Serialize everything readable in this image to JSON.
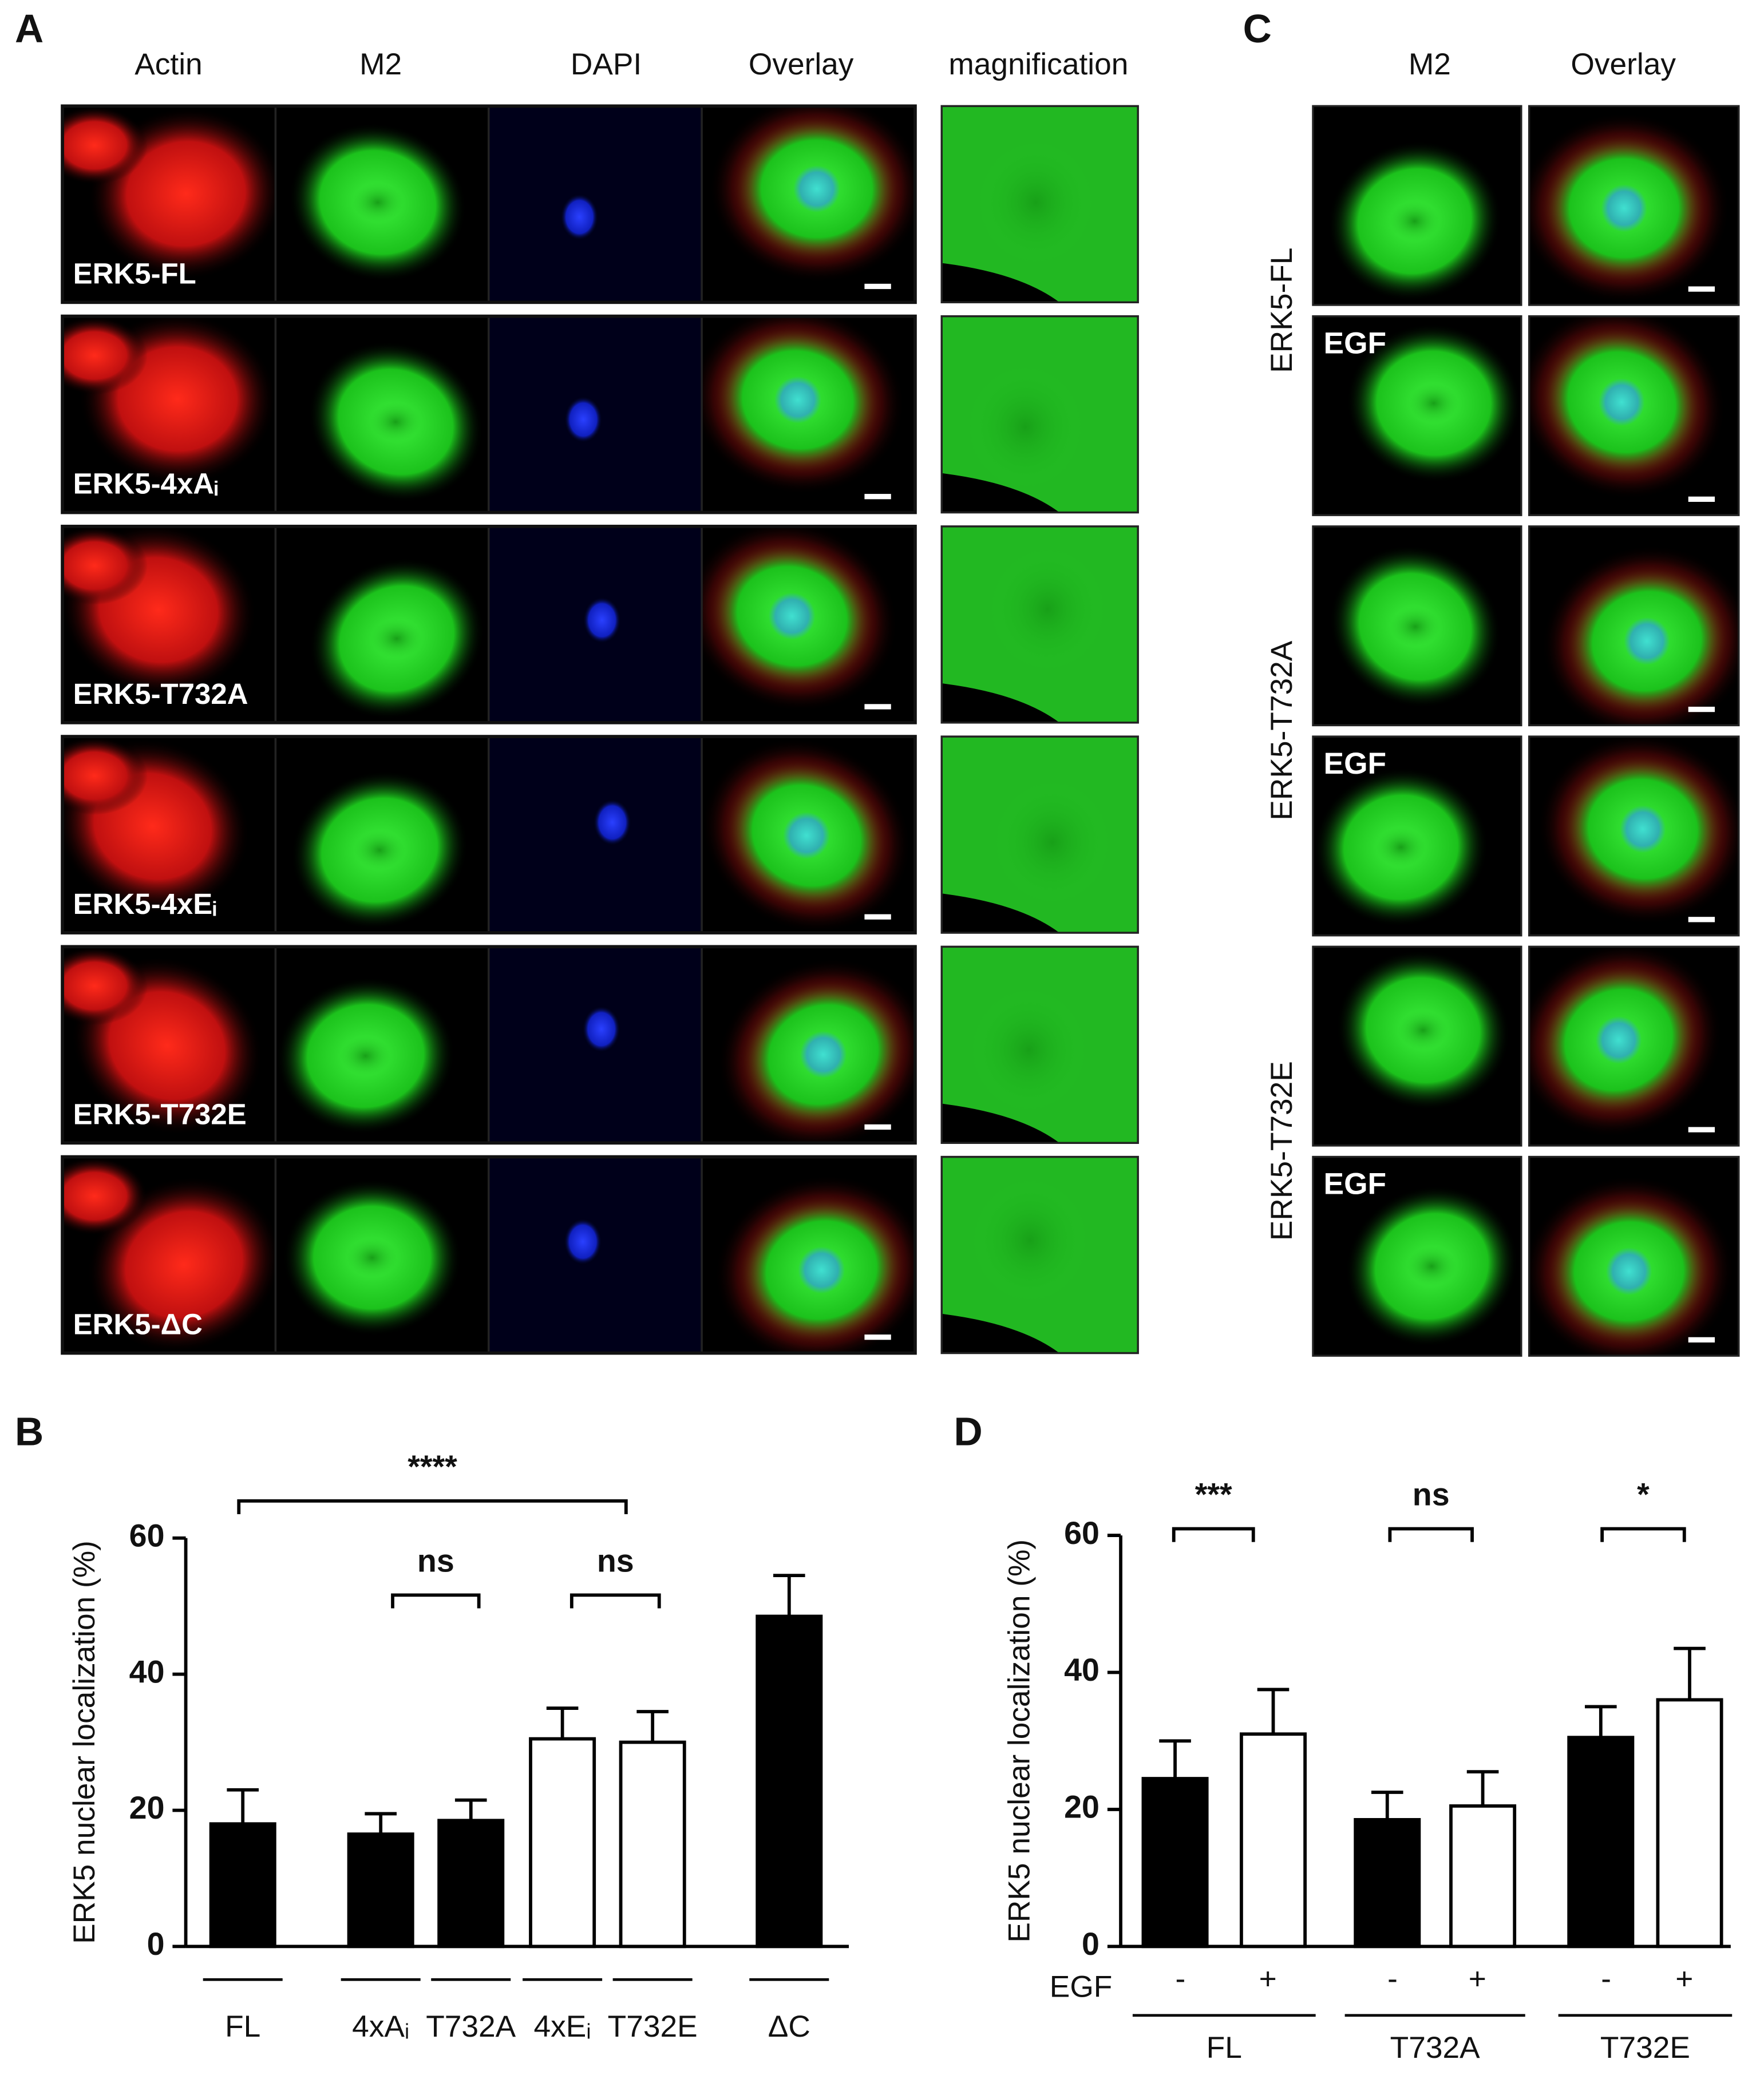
{
  "image_panels": {
    "A": {
      "panel_label": "A",
      "columns": [
        "Actin",
        "M2",
        "DAPI",
        "Overlay",
        "magnification"
      ],
      "rows": [
        "ERK5-FL",
        "ERK5-4xAᵢ",
        "ERK5-T732A",
        "ERK5-4xEᵢ",
        "ERK5-T732E",
        "ERK5-ΔC"
      ]
    },
    "C": {
      "panel_label": "C",
      "columns": [
        "M2",
        "Overlay"
      ],
      "groups": [
        "ERK5-FL",
        "ERK5-T732A",
        "ERK5-T732E"
      ],
      "treatment": "EGF"
    }
  },
  "chart_data": [
    {
      "panel_label": "B",
      "type": "bar",
      "y_label": "ERK5 nuclear localization (%)",
      "categories": [
        "FL",
        "4xAᵢ",
        "T732A",
        "4xEᵢ",
        "T732E",
        "ΔC"
      ],
      "values": [
        18,
        16.5,
        18.5,
        30.5,
        30,
        48.5
      ],
      "errors": [
        5,
        3,
        3,
        4.5,
        4.5,
        6
      ],
      "colors": [
        "#000000",
        "#000000",
        "#000000",
        "#ffffff",
        "#ffffff",
        "#000000"
      ],
      "ylim": [
        0,
        60
      ],
      "yticks": [
        0,
        20,
        40,
        60
      ],
      "annotations": [
        "****",
        "ns",
        "ns"
      ]
    },
    {
      "panel_label": "D",
      "type": "grouped_bar",
      "y_label": "ERK5 nuclear localization (%)",
      "row_label": "EGF",
      "categories": [
        "FL",
        "T732A",
        "T732E"
      ],
      "series": [
        {
          "name": "-",
          "color": "#000000",
          "values": [
            24.5,
            18.5,
            30.5
          ],
          "errors": [
            5.5,
            4,
            4.5
          ]
        },
        {
          "name": "+",
          "color": "#ffffff",
          "values": [
            31,
            20.5,
            36
          ],
          "errors": [
            6.5,
            5,
            7.5
          ]
        }
      ],
      "ylim": [
        0,
        60
      ],
      "yticks": [
        0,
        20,
        40,
        60
      ],
      "annotations": [
        "***",
        "ns",
        "*"
      ]
    }
  ]
}
